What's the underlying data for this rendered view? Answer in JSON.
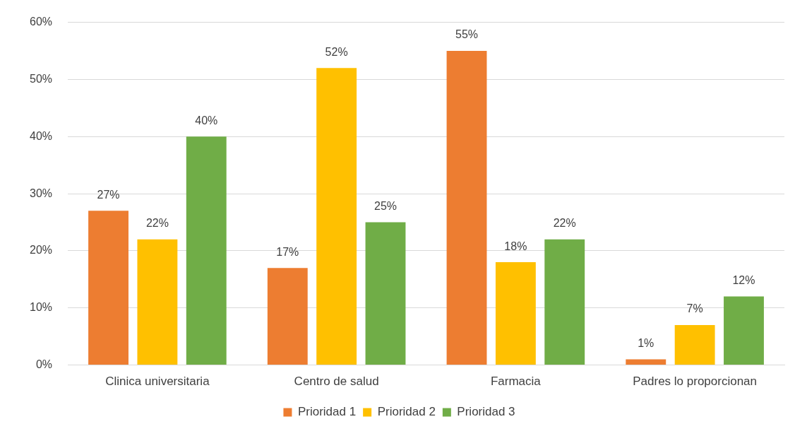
{
  "chart_data": {
    "type": "bar",
    "categories": [
      "Clinica universitaria",
      "Centro de salud",
      "Farmacia",
      "Padres lo proporcionan"
    ],
    "series": [
      {
        "name": "Prioridad 1",
        "color": "#ed7d31",
        "values": [
          27,
          17,
          55,
          1
        ],
        "value_labels": [
          "27%",
          "17%",
          "55%",
          "1%"
        ]
      },
      {
        "name": "Prioridad 2",
        "color": "#ffc000",
        "values": [
          22,
          52,
          18,
          7
        ],
        "value_labels": [
          "22%",
          "52%",
          "18%",
          "7%"
        ]
      },
      {
        "name": "Prioridad 3",
        "color": "#70ad47",
        "values": [
          40,
          25,
          22,
          12
        ],
        "value_labels": [
          "40%",
          "25%",
          "22%",
          "12%"
        ]
      }
    ],
    "ylim": [
      0,
      60
    ],
    "yticks": [
      {
        "value": 0,
        "label": "0%"
      },
      {
        "value": 10,
        "label": "10%"
      },
      {
        "value": 20,
        "label": "20%"
      },
      {
        "value": 30,
        "label": "30%"
      },
      {
        "value": 40,
        "label": "40%"
      },
      {
        "value": 50,
        "label": "50%"
      },
      {
        "value": 60,
        "label": "60%"
      }
    ],
    "grid": "y",
    "legend": "bottom"
  }
}
